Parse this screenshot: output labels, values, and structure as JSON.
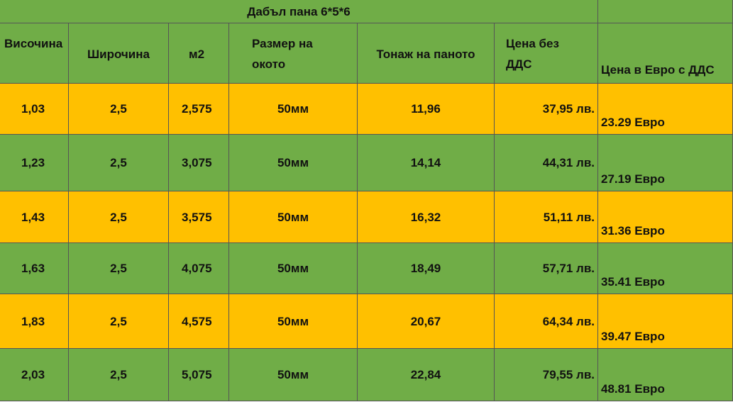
{
  "table": {
    "title": "Дабъл пана 6*5*6",
    "header": [
      "Височина",
      "Широчина",
      "м2",
      "Размер на окото",
      "Тонаж на паното",
      "Цена без ДДС",
      "Цена в Евро с ДДС"
    ],
    "rows": [
      [
        "1,03",
        "2,5",
        "2,575",
        "50мм",
        "11,96",
        "37,95 лв.",
        "23.29 Евро"
      ],
      [
        "1,23",
        "2,5",
        "3,075",
        "50мм",
        "14,14",
        "44,31 лв.",
        "27.19 Евро"
      ],
      [
        "1,43",
        "2,5",
        "3,575",
        "50мм",
        "16,32",
        "51,11 лв.",
        "31.36 Евро"
      ],
      [
        "1,63",
        "2,5",
        "4,075",
        "50мм",
        "18,49",
        "57,71 лв.",
        "35.41 Евро"
      ],
      [
        "1,83",
        "2,5",
        "4,575",
        "50мм",
        "20,67",
        "64,34 лв.",
        "39.47 Евро"
      ],
      [
        "2,03",
        "2,5",
        "5,075",
        "50мм",
        "22,84",
        "79,55 лв.",
        "48.81 Евро"
      ]
    ]
  }
}
